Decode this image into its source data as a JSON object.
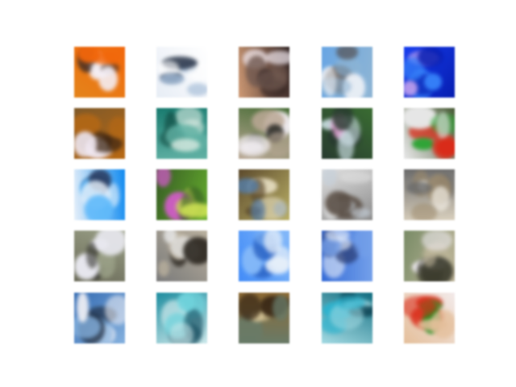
{
  "figure": {
    "background": "#ffffff",
    "rows": 5,
    "cols": 5,
    "description_kind": "generated-sample-grid"
  },
  "tiles": [
    {
      "id": "r1c1",
      "base": "#d9862a",
      "accents": [
        "#f4f0f6",
        "#3a2a26",
        "#e36a1a"
      ]
    },
    {
      "id": "r1c2",
      "base": "#e8edf4",
      "accents": [
        "#9fb6cf",
        "#2b3546",
        "#ffffff"
      ]
    },
    {
      "id": "r1c3",
      "base": "#c89a7a",
      "accents": [
        "#6e5a52",
        "#f0e8ee",
        "#2e2222"
      ]
    },
    {
      "id": "r1c4",
      "base": "#6fa4da",
      "accents": [
        "#e9eef4",
        "#4a3a30",
        "#93b4cf"
      ]
    },
    {
      "id": "r1c5",
      "base": "#1d3fd8",
      "accents": [
        "#3e7fe8",
        "#c8a8e8",
        "#0a1e9e"
      ]
    },
    {
      "id": "r2c1",
      "base": "#7a5a30",
      "accents": [
        "#f0e8f0",
        "#3a2616",
        "#b06a20"
      ]
    },
    {
      "id": "r2c2",
      "base": "#23786e",
      "accents": [
        "#d8e8e0",
        "#14443c",
        "#6ab0a4"
      ]
    },
    {
      "id": "r2c3",
      "base": "#4a6a3a",
      "accents": [
        "#f2eef2",
        "#2a2a26",
        "#b8a898"
      ]
    },
    {
      "id": "r2c4",
      "base": "#3e6a38",
      "accents": [
        "#d8e8ee",
        "#e8a8d8",
        "#2a3a30"
      ]
    },
    {
      "id": "r2c5",
      "base": "#4a5a3a",
      "accents": [
        "#c83020",
        "#3aa040",
        "#e8e8e8"
      ]
    },
    {
      "id": "r3c1",
      "base": "#1e88e0",
      "accents": [
        "#6ab8f0",
        "#2a3a5a",
        "#e8f0f8"
      ]
    },
    {
      "id": "r3c2",
      "base": "#6aa83a",
      "accents": [
        "#d8e868",
        "#c860c0",
        "#3a5a2a"
      ]
    },
    {
      "id": "r3c3",
      "base": "#b8b070",
      "accents": [
        "#5a7a9a",
        "#e8e0c8",
        "#5a4a30"
      ]
    },
    {
      "id": "r3c4",
      "base": "#8a8a8a",
      "accents": [
        "#c8d0d8",
        "#5a5048",
        "#e0e0e0"
      ]
    },
    {
      "id": "r3c5",
      "base": "#d8d0c0",
      "accents": [
        "#9a8a70",
        "#eeeae2",
        "#6a6a6a"
      ]
    },
    {
      "id": "r4c1",
      "base": "#6a6a5a",
      "accents": [
        "#e8e8ee",
        "#2e2e2a",
        "#9aa08a"
      ]
    },
    {
      "id": "r4c2",
      "base": "#7a7a7a",
      "accents": [
        "#e8e8e8",
        "#2a2620",
        "#b8b0a0"
      ]
    },
    {
      "id": "r4c3",
      "base": "#4a8ae8",
      "accents": [
        "#e8f0f8",
        "#2a5ab0",
        "#8ab8f0"
      ]
    },
    {
      "id": "r4c4",
      "base": "#3a6ac8",
      "accents": [
        "#e8eef8",
        "#2a3a6a",
        "#7aa0e0"
      ]
    },
    {
      "id": "r4c5",
      "base": "#7a8a6a",
      "accents": [
        "#f2eef4",
        "#3a3a2e",
        "#c0b8a0"
      ]
    },
    {
      "id": "r5c1",
      "base": "#3a6aa8",
      "accents": [
        "#f0f0f4",
        "#1e2a3a",
        "#8ab0d8"
      ]
    },
    {
      "id": "r5c2",
      "base": "#2a8a9a",
      "accents": [
        "#7ad0d8",
        "#1a4a5a",
        "#d0e8ea"
      ]
    },
    {
      "id": "r5c3",
      "base": "#8a6a3a",
      "accents": [
        "#3a2a1a",
        "#d8c8a0",
        "#6a7a6a"
      ]
    },
    {
      "id": "r5c4",
      "base": "#1a6a7a",
      "accents": [
        "#3ab0c8",
        "#0e3a48",
        "#a8d8e0"
      ]
    },
    {
      "id": "r5c5",
      "base": "#f2eaea",
      "accents": [
        "#c83020",
        "#2a8a2a",
        "#e0c0a0"
      ]
    }
  ]
}
